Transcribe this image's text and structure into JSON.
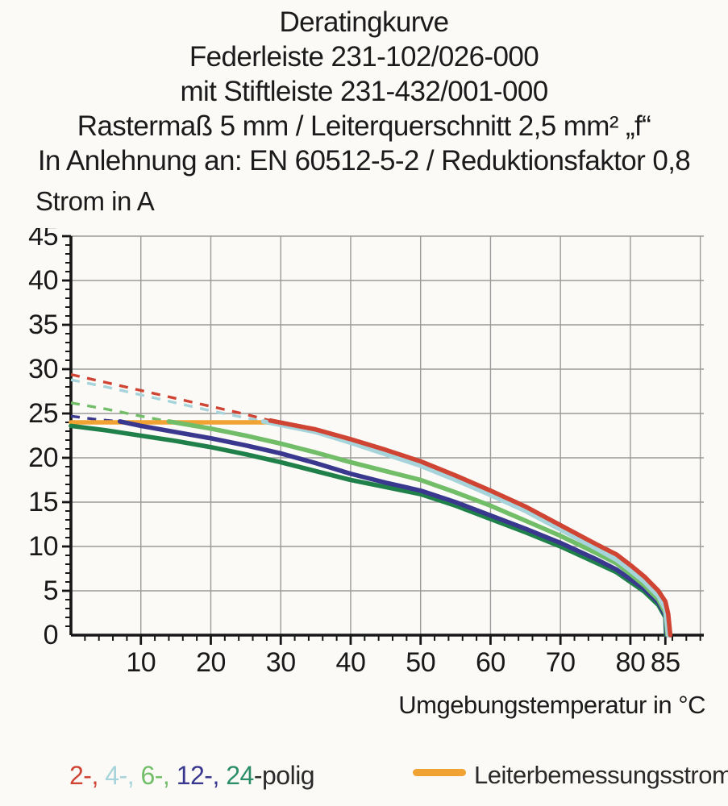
{
  "title_lines": [
    "Deratingkurve",
    "Federleiste 231-102/026-000",
    "mit Stiftleiste 231-432/001-000",
    "Rastermaß 5 mm / Leiterquerschnitt 2,5 mm² „f“",
    "In Anlehnung an: EN 60512-5-2 / Reduktionsfaktor 0,8"
  ],
  "chart_data": {
    "type": "line",
    "title": "Deratingkurve",
    "ylabel": "Strom in A",
    "xlabel": "Umgebungstemperatur in °C",
    "xlim": [
      0,
      90.5
    ],
    "ylim": [
      0,
      45
    ],
    "grid": "on",
    "x_grid": [
      10,
      20,
      30,
      40,
      50,
      60,
      70,
      80,
      90
    ],
    "y_grid": [
      5,
      10,
      15,
      20,
      25,
      30,
      35,
      40,
      45
    ],
    "x_ticks": [
      {
        "t": 10,
        "label": "10"
      },
      {
        "t": 20,
        "label": "20"
      },
      {
        "t": 30,
        "label": "30"
      },
      {
        "t": 40,
        "label": "40"
      },
      {
        "t": 50,
        "label": "50"
      },
      {
        "t": 60,
        "label": "60"
      },
      {
        "t": 70,
        "label": "70"
      },
      {
        "t": 80,
        "label": "80"
      },
      {
        "t": 85,
        "label": "85"
      }
    ],
    "y_ticks": [
      {
        "v": 0,
        "label": "0"
      },
      {
        "v": 5,
        "label": "5"
      },
      {
        "v": 10,
        "label": "10"
      },
      {
        "v": 15,
        "label": "15"
      },
      {
        "v": 20,
        "label": "20"
      },
      {
        "v": 25,
        "label": "25"
      },
      {
        "v": 30,
        "label": "30"
      },
      {
        "v": 35,
        "label": "35"
      },
      {
        "v": 40,
        "label": "40"
      },
      {
        "v": 45,
        "label": "45"
      }
    ],
    "series": [
      {
        "name": "12-polig-ohne-reduktion",
        "style": "dashed",
        "color": "#39388e",
        "points": [
          [
            0,
            24.7
          ],
          [
            4,
            24.3
          ],
          [
            7,
            24.1
          ]
        ]
      },
      {
        "name": "6-polig-ohne-reduktion",
        "style": "dashed",
        "color": "#72bd68",
        "points": [
          [
            0,
            26.2
          ],
          [
            5,
            25.5
          ],
          [
            10,
            24.7
          ],
          [
            14,
            24.1
          ]
        ]
      },
      {
        "name": "4-polig-ohne-reduktion",
        "style": "dashed",
        "color": "#a6d4da",
        "points": [
          [
            0,
            28.8
          ],
          [
            5,
            28.0
          ],
          [
            10,
            27.1
          ],
          [
            15,
            26.2
          ],
          [
            20,
            25.3
          ],
          [
            25,
            24.5
          ],
          [
            27.5,
            24.1
          ]
        ]
      },
      {
        "name": "2-polig-ohne-reduktion",
        "style": "dashed",
        "color": "#cf4433",
        "points": [
          [
            0,
            29.4
          ],
          [
            5,
            28.5
          ],
          [
            10,
            27.6
          ],
          [
            15,
            26.7
          ],
          [
            20,
            25.8
          ],
          [
            25,
            24.9
          ],
          [
            28.5,
            24.2
          ]
        ]
      },
      {
        "name": "leiterbemessungsstrom",
        "style": "solid",
        "color": "#f0a233",
        "points": [
          [
            0,
            24
          ],
          [
            28.5,
            24
          ]
        ]
      },
      {
        "name": "24-polig",
        "style": "solid",
        "color": "#1f8049",
        "points": [
          [
            0,
            23.6
          ],
          [
            5,
            23.1
          ],
          [
            10,
            22.5
          ],
          [
            15,
            21.9
          ],
          [
            20,
            21.2
          ],
          [
            25,
            20.4
          ],
          [
            30,
            19.5
          ],
          [
            35,
            18.5
          ],
          [
            40,
            17.5
          ],
          [
            45,
            16.7
          ],
          [
            50,
            15.9
          ],
          [
            55,
            14.6
          ],
          [
            60,
            13.1
          ],
          [
            65,
            11.6
          ],
          [
            70,
            10.0
          ],
          [
            75,
            8.2
          ],
          [
            78,
            7.1
          ],
          [
            80,
            6.0
          ],
          [
            82,
            4.9
          ],
          [
            84,
            3.4
          ],
          [
            85,
            2.0
          ],
          [
            85.1,
            0
          ]
        ]
      },
      {
        "name": "12-polig",
        "style": "solid",
        "color": "#39388e",
        "points": [
          [
            7,
            24.1
          ],
          [
            10,
            23.6
          ],
          [
            15,
            22.9
          ],
          [
            20,
            22.2
          ],
          [
            25,
            21.4
          ],
          [
            30,
            20.5
          ],
          [
            35,
            19.4
          ],
          [
            40,
            18.2
          ],
          [
            45,
            17.2
          ],
          [
            50,
            16.3
          ],
          [
            55,
            15.0
          ],
          [
            60,
            13.5
          ],
          [
            65,
            12.0
          ],
          [
            70,
            10.4
          ],
          [
            75,
            8.6
          ],
          [
            78,
            7.4
          ],
          [
            80,
            6.3
          ],
          [
            82,
            5.2
          ],
          [
            84,
            3.7
          ],
          [
            85,
            2.2
          ],
          [
            85.2,
            0
          ]
        ]
      },
      {
        "name": "6-polig",
        "style": "solid",
        "color": "#72bd68",
        "points": [
          [
            14,
            24.1
          ],
          [
            20,
            23.3
          ],
          [
            25,
            22.5
          ],
          [
            30,
            21.6
          ],
          [
            35,
            20.6
          ],
          [
            40,
            19.5
          ],
          [
            45,
            18.5
          ],
          [
            50,
            17.5
          ],
          [
            55,
            16.1
          ],
          [
            60,
            14.6
          ],
          [
            65,
            12.9
          ],
          [
            70,
            11.2
          ],
          [
            75,
            9.3
          ],
          [
            78,
            8.1
          ],
          [
            80,
            6.9
          ],
          [
            82,
            5.6
          ],
          [
            84,
            4.0
          ],
          [
            85,
            2.5
          ],
          [
            85.3,
            0
          ]
        ]
      },
      {
        "name": "4-polig",
        "style": "solid",
        "color": "#a6d4da",
        "points": [
          [
            27.5,
            24.1
          ],
          [
            35,
            22.9
          ],
          [
            40,
            21.7
          ],
          [
            45,
            20.4
          ],
          [
            50,
            19.1
          ],
          [
            55,
            17.5
          ],
          [
            60,
            15.8
          ],
          [
            65,
            14.0
          ],
          [
            70,
            11.9
          ],
          [
            75,
            9.8
          ],
          [
            78,
            8.5
          ],
          [
            80,
            7.3
          ],
          [
            82,
            6.0
          ],
          [
            84,
            4.4
          ],
          [
            85,
            2.9
          ],
          [
            85.4,
            0
          ]
        ]
      },
      {
        "name": "2-polig",
        "style": "solid",
        "color": "#cf4433",
        "points": [
          [
            28.5,
            24.2
          ],
          [
            35,
            23.2
          ],
          [
            40,
            22.1
          ],
          [
            45,
            20.9
          ],
          [
            50,
            19.6
          ],
          [
            55,
            18.0
          ],
          [
            60,
            16.3
          ],
          [
            65,
            14.5
          ],
          [
            70,
            12.4
          ],
          [
            75,
            10.3
          ],
          [
            78,
            9.1
          ],
          [
            80,
            7.9
          ],
          [
            82,
            6.6
          ],
          [
            84,
            5.0
          ],
          [
            85,
            3.8
          ],
          [
            85.4,
            2.4
          ],
          [
            85.7,
            0
          ]
        ]
      }
    ]
  },
  "legend": {
    "poles": {
      "parts": [
        {
          "text": "2-, ",
          "color": "#cf4433"
        },
        {
          "text": "4-, ",
          "color": "#a6d4da"
        },
        {
          "text": "6-, ",
          "color": "#72bd68"
        },
        {
          "text": "12-, ",
          "color": "#39388e"
        },
        {
          "text": "24",
          "color": "#2b8e68"
        },
        {
          "text": "-polig",
          "color": "#2a2a2a"
        }
      ]
    },
    "rated_current": {
      "color": "#f0a233",
      "label": "Leiterbemessungsstrom"
    }
  }
}
